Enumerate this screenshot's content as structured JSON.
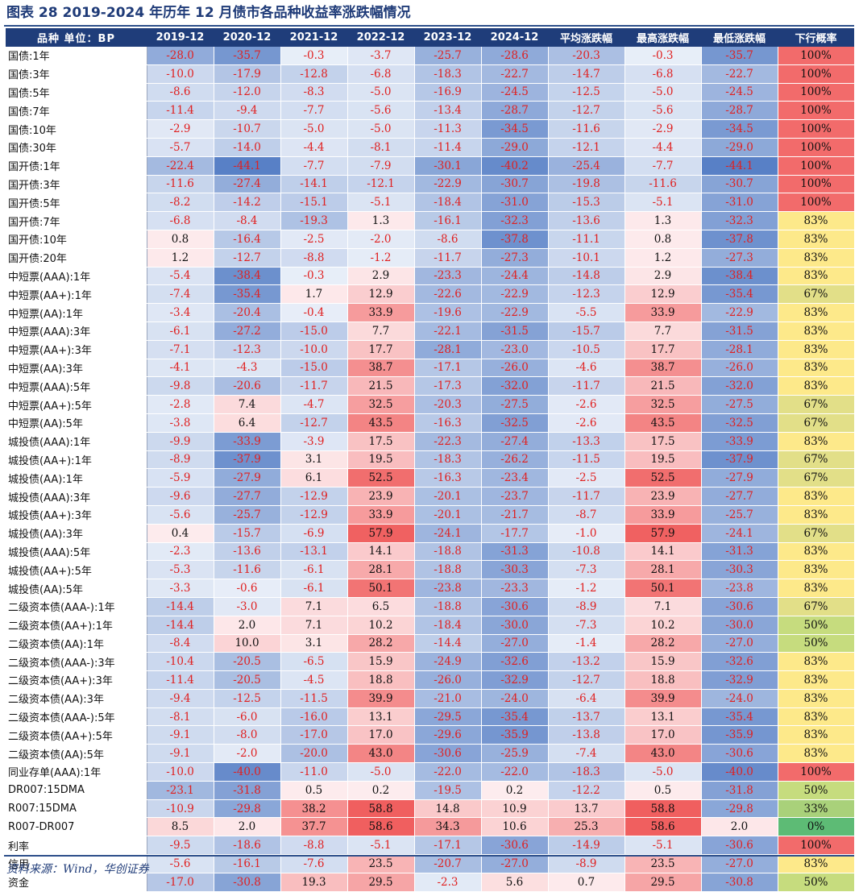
{
  "header": {
    "title": "图表 28    2019-2024 年历年 12 月债市各品种收益率涨跌幅情况"
  },
  "footer": {
    "source": "资料来源：Wind，华创证券"
  },
  "colors": {
    "header_bg": "#1f3d7a",
    "negative_text": "#e02020",
    "strong_blue": "#5b80c4",
    "strong_red": "#f06060",
    "prob_red": "#f26b6b",
    "prob_yellow": "#fde98a",
    "prob_green": "#5dbb75"
  },
  "chart_data": {
    "type": "table",
    "title": "2019-2024 年历年 12 月债市各品种收益率涨跌幅情况",
    "columns": [
      "品种 单位：BP",
      "2019-12",
      "2020-12",
      "2021-12",
      "2022-12",
      "2023-12",
      "2024-12",
      "平均涨跌幅",
      "最高涨跌幅",
      "最低涨跌幅",
      "下行概率"
    ],
    "rows": [
      {
        "name": "国债:1年",
        "values": [
          -28.0,
          -35.7,
          -0.3,
          -3.7,
          -25.7,
          -28.6,
          -20.3,
          -0.3,
          -35.7
        ],
        "prob": "100%"
      },
      {
        "name": "国债:3年",
        "values": [
          -10.0,
          -17.9,
          -12.8,
          -6.8,
          -18.3,
          -22.7,
          -14.7,
          -6.8,
          -22.7
        ],
        "prob": "100%"
      },
      {
        "name": "国债:5年",
        "values": [
          -8.6,
          -12.0,
          -8.3,
          -5.0,
          -16.9,
          -24.5,
          -12.5,
          -5.0,
          -24.5
        ],
        "prob": "100%"
      },
      {
        "name": "国债:7年",
        "values": [
          -11.4,
          -9.4,
          -7.7,
          -5.6,
          -13.4,
          -28.7,
          -12.7,
          -5.6,
          -28.7
        ],
        "prob": "100%"
      },
      {
        "name": "国债:10年",
        "values": [
          -2.9,
          -10.7,
          -5.0,
          -5.0,
          -11.3,
          -34.5,
          -11.6,
          -2.9,
          -34.5
        ],
        "prob": "100%"
      },
      {
        "name": "国债:30年",
        "values": [
          -5.7,
          -14.0,
          -4.4,
          -8.1,
          -11.4,
          -29.0,
          -12.1,
          -4.4,
          -29.0
        ],
        "prob": "100%"
      },
      {
        "name": "国开债:1年",
        "values": [
          -22.4,
          -44.1,
          -7.7,
          -7.9,
          -30.1,
          -40.2,
          -25.4,
          -7.7,
          -44.1
        ],
        "prob": "100%"
      },
      {
        "name": "国开债:3年",
        "values": [
          -11.6,
          -27.4,
          -14.1,
          -12.1,
          -22.9,
          -30.7,
          -19.8,
          -11.6,
          -30.7
        ],
        "prob": "100%"
      },
      {
        "name": "国开债:5年",
        "values": [
          -8.2,
          -14.2,
          -15.1,
          -5.1,
          -18.4,
          -31.0,
          -15.3,
          -5.1,
          -31.0
        ],
        "prob": "100%"
      },
      {
        "name": "国开债:7年",
        "values": [
          -6.8,
          -8.4,
          -19.3,
          1.3,
          -16.1,
          -32.3,
          -13.6,
          1.3,
          -32.3
        ],
        "prob": "83%"
      },
      {
        "name": "国开债:10年",
        "values": [
          0.8,
          -16.4,
          -2.5,
          -2.0,
          -8.6,
          -37.8,
          -11.1,
          0.8,
          -37.8
        ],
        "prob": "83%"
      },
      {
        "name": "国开债:20年",
        "values": [
          1.2,
          -12.7,
          -8.8,
          -1.2,
          -11.7,
          -27.3,
          -10.1,
          1.2,
          -27.3
        ],
        "prob": "83%"
      },
      {
        "name": "中短票(AAA):1年",
        "values": [
          -5.4,
          -38.4,
          -0.3,
          2.9,
          -23.3,
          -24.4,
          -14.8,
          2.9,
          -38.4
        ],
        "prob": "83%",
        "sep": true
      },
      {
        "name": "中短票(AA+):1年",
        "values": [
          -7.4,
          -35.4,
          1.7,
          12.9,
          -22.6,
          -22.9,
          -12.3,
          12.9,
          -35.4
        ],
        "prob": "67%"
      },
      {
        "name": "中短票(AA):1年",
        "values": [
          -3.4,
          -20.4,
          -0.4,
          33.9,
          -19.6,
          -22.9,
          -5.5,
          33.9,
          -22.9
        ],
        "prob": "83%"
      },
      {
        "name": "中短票(AAA):3年",
        "values": [
          -6.1,
          -27.2,
          -15.0,
          7.7,
          -22.1,
          -31.5,
          -15.7,
          7.7,
          -31.5
        ],
        "prob": "83%"
      },
      {
        "name": "中短票(AA+):3年",
        "values": [
          -7.1,
          -12.3,
          -10.0,
          17.7,
          -28.1,
          -23.0,
          -10.5,
          17.7,
          -28.1
        ],
        "prob": "83%"
      },
      {
        "name": "中短票(AA):3年",
        "values": [
          -4.1,
          -4.3,
          -15.0,
          38.7,
          -17.1,
          -26.0,
          -4.6,
          38.7,
          -26.0
        ],
        "prob": "83%"
      },
      {
        "name": "中短票(AAA):5年",
        "values": [
          -9.8,
          -20.6,
          -11.7,
          21.5,
          -17.3,
          -32.0,
          -11.7,
          21.5,
          -32.0
        ],
        "prob": "83%"
      },
      {
        "name": "中短票(AA+):5年",
        "values": [
          -2.8,
          7.4,
          -4.7,
          32.5,
          -20.3,
          -27.5,
          -2.6,
          32.5,
          -27.5
        ],
        "prob": "67%"
      },
      {
        "name": "中短票(AA):5年",
        "values": [
          -3.8,
          6.4,
          -12.7,
          43.5,
          -16.3,
          -32.5,
          -2.6,
          43.5,
          -32.5
        ],
        "prob": "67%"
      },
      {
        "name": "城投债(AAA):1年",
        "values": [
          -9.9,
          -33.9,
          -3.9,
          17.5,
          -22.3,
          -27.4,
          -13.3,
          17.5,
          -33.9
        ],
        "prob": "83%"
      },
      {
        "name": "城投债(AA+):1年",
        "values": [
          -8.9,
          -37.9,
          3.1,
          19.5,
          -18.3,
          -26.2,
          -11.5,
          19.5,
          -37.9
        ],
        "prob": "67%"
      },
      {
        "name": "城投债(AA):1年",
        "values": [
          -5.9,
          -27.9,
          6.1,
          52.5,
          -16.3,
          -23.4,
          -2.5,
          52.5,
          -27.9
        ],
        "prob": "67%"
      },
      {
        "name": "城投债(AAA):3年",
        "values": [
          -9.6,
          -27.7,
          -12.9,
          23.9,
          -20.1,
          -23.7,
          -11.7,
          23.9,
          -27.7
        ],
        "prob": "83%"
      },
      {
        "name": "城投债(AA+):3年",
        "values": [
          -5.6,
          -25.7,
          -12.9,
          33.9,
          -20.1,
          -21.7,
          -8.7,
          33.9,
          -25.7
        ],
        "prob": "83%"
      },
      {
        "name": "城投债(AA):3年",
        "values": [
          0.4,
          -15.7,
          -6.9,
          57.9,
          -24.1,
          -17.7,
          -1.0,
          57.9,
          -24.1
        ],
        "prob": "67%"
      },
      {
        "name": "城投债(AAA):5年",
        "values": [
          -2.3,
          -13.6,
          -13.1,
          14.1,
          -18.8,
          -31.3,
          -10.8,
          14.1,
          -31.3
        ],
        "prob": "83%"
      },
      {
        "name": "城投债(AA+):5年",
        "values": [
          -5.3,
          -11.6,
          -6.1,
          28.1,
          -18.8,
          -30.3,
          -7.3,
          28.1,
          -30.3
        ],
        "prob": "83%"
      },
      {
        "name": "城投债(AA):5年",
        "values": [
          -3.3,
          -0.6,
          -6.1,
          50.1,
          -23.8,
          -23.3,
          -1.2,
          50.1,
          -23.8
        ],
        "prob": "83%"
      },
      {
        "name": "二级资本债(AAA-):1年",
        "values": [
          -14.4,
          -3.0,
          7.1,
          6.5,
          -18.8,
          -30.6,
          -8.9,
          7.1,
          -30.6
        ],
        "prob": "67%",
        "sep": true
      },
      {
        "name": "二级资本债(AA+):1年",
        "values": [
          -14.4,
          2.0,
          7.1,
          10.2,
          -18.4,
          -30.0,
          -7.3,
          10.2,
          -30.0
        ],
        "prob": "50%"
      },
      {
        "name": "二级资本债(AA):1年",
        "values": [
          -8.4,
          10.0,
          3.1,
          28.2,
          -14.4,
          -27.0,
          -1.4,
          28.2,
          -27.0
        ],
        "prob": "50%"
      },
      {
        "name": "二级资本债(AAA-):3年",
        "values": [
          -10.4,
          -20.5,
          -6.5,
          15.9,
          -24.9,
          -32.6,
          -13.2,
          15.9,
          -32.6
        ],
        "prob": "83%"
      },
      {
        "name": "二级资本债(AA+):3年",
        "values": [
          -11.4,
          -20.5,
          -4.5,
          18.8,
          -26.0,
          -32.9,
          -12.7,
          18.8,
          -32.9
        ],
        "prob": "83%"
      },
      {
        "name": "二级资本债(AA):3年",
        "values": [
          -9.4,
          -12.5,
          -11.5,
          39.9,
          -21.0,
          -24.0,
          -6.4,
          39.9,
          -24.0
        ],
        "prob": "83%"
      },
      {
        "name": "二级资本债(AAA-):5年",
        "values": [
          -8.1,
          -6.0,
          -16.0,
          13.1,
          -29.5,
          -35.4,
          -13.7,
          13.1,
          -35.4
        ],
        "prob": "83%"
      },
      {
        "name": "二级资本债(AA+):5年",
        "values": [
          -9.1,
          -8.0,
          -17.0,
          17.0,
          -29.6,
          -35.9,
          -13.8,
          17.0,
          -35.9
        ],
        "prob": "83%"
      },
      {
        "name": "二级资本债(AA):5年",
        "values": [
          -9.1,
          -2.0,
          -20.0,
          43.0,
          -30.6,
          -25.9,
          -7.4,
          43.0,
          -30.6
        ],
        "prob": "83%"
      },
      {
        "name": "同业存单(AAA):1年",
        "values": [
          -10.0,
          -40.0,
          -11.0,
          -5.0,
          -22.0,
          -22.0,
          -18.3,
          -5.0,
          -40.0
        ],
        "prob": "100%",
        "sep": true
      },
      {
        "name": "DR007:15DMA",
        "values": [
          -23.1,
          -31.8,
          0.5,
          0.2,
          -19.5,
          0.2,
          -12.2,
          0.5,
          -31.8
        ],
        "prob": "50%"
      },
      {
        "name": "R007:15DMA",
        "values": [
          -10.9,
          -29.8,
          38.2,
          58.8,
          14.8,
          10.9,
          13.7,
          58.8,
          -29.8
        ],
        "prob": "33%"
      },
      {
        "name": "R007-DR007",
        "values": [
          8.5,
          2.0,
          37.7,
          58.6,
          34.3,
          10.6,
          25.3,
          58.6,
          2.0
        ],
        "prob": "0%"
      },
      {
        "name": "利率",
        "values": [
          -9.5,
          -18.6,
          -8.8,
          -5.1,
          -17.1,
          -30.6,
          -14.9,
          -5.1,
          -30.6
        ],
        "prob": "100%",
        "sep": true
      },
      {
        "name": "信用",
        "values": [
          -5.6,
          -16.1,
          -7.6,
          23.5,
          -20.7,
          -27.0,
          -8.9,
          23.5,
          -27.0
        ],
        "prob": "83%"
      },
      {
        "name": "资金",
        "values": [
          -17.0,
          -30.8,
          19.3,
          29.5,
          -2.3,
          5.6,
          0.7,
          29.5,
          -30.8
        ],
        "prob": "50%"
      }
    ]
  }
}
